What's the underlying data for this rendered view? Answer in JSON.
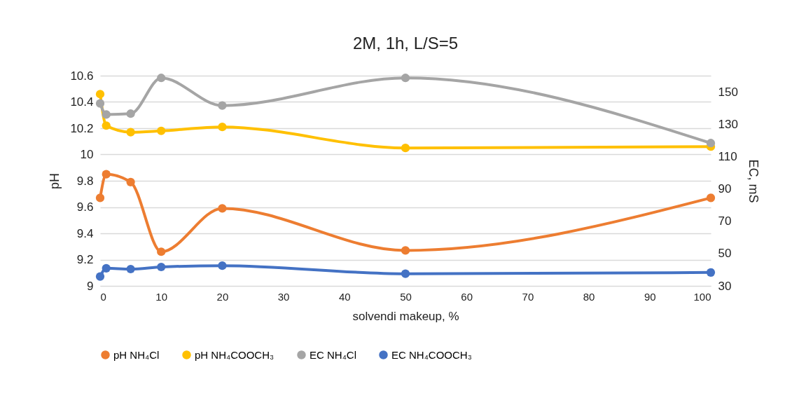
{
  "chart_data": {
    "type": "line",
    "title": "2M, 1h, L/S=5",
    "xlabel": "solvendi makeup, %",
    "ylabel": "pH",
    "y2label": "EC, mS",
    "x": [
      0,
      1,
      5,
      10,
      20,
      50,
      100
    ],
    "series": [
      {
        "name": "pH NH₄Cl",
        "color": "#ed7d31",
        "axis": "y",
        "values": [
          9.67,
          9.85,
          9.79,
          9.26,
          9.59,
          9.27,
          9.67
        ]
      },
      {
        "name": "pH NH₄COOCH₃",
        "color": "#ffc000",
        "axis": "y",
        "values": [
          10.46,
          10.22,
          10.17,
          10.18,
          10.21,
          10.05,
          10.06
        ]
      },
      {
        "name": "EC NH₄Cl",
        "color": "#a5a5a5",
        "axis": "y2",
        "values": [
          142.8,
          136,
          136.5,
          158.6,
          141.5,
          158.6,
          118.3
        ]
      },
      {
        "name": "EC NH₄COOCH₃",
        "color": "#4472c4",
        "axis": "y2",
        "values": [
          35.8,
          40.9,
          40.4,
          41.7,
          42.5,
          37.5,
          38.3
        ]
      }
    ],
    "xlim": [
      0,
      100
    ],
    "xticks": [
      0,
      10,
      20,
      30,
      40,
      50,
      60,
      70,
      80,
      90,
      100
    ],
    "ylim": [
      9,
      10.6
    ],
    "yticks": [
      9,
      9.2,
      9.4,
      9.6,
      9.8,
      10,
      10.2,
      10.4,
      10.6
    ],
    "y2lim": [
      30,
      160
    ],
    "y2ticks": [
      30,
      50,
      70,
      90,
      110,
      130,
      150
    ],
    "grid": "y",
    "legend": "bottom",
    "marker": "circle",
    "line_style": "solid"
  }
}
